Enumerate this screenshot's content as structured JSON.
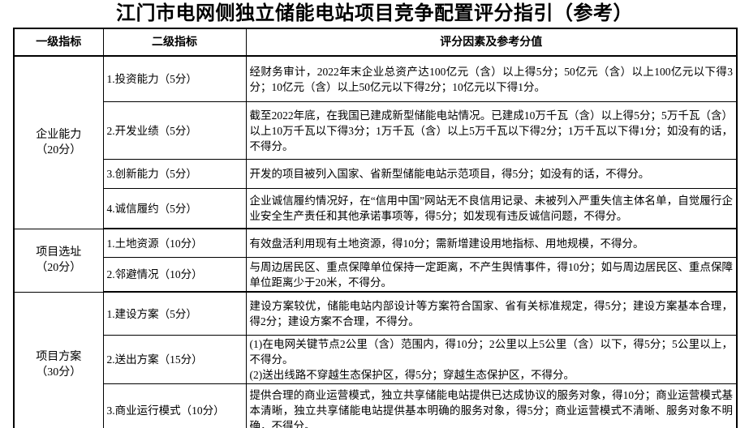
{
  "title": "江门市电网侧独立储能电站项目竞争配置评分指引（参考）",
  "table": {
    "headers": [
      "一级指标",
      "二级指标",
      "评分因素及参考分值"
    ],
    "sections": [
      {
        "category": {
          "name": "企业能力",
          "score": "（20分）"
        },
        "rows": [
          {
            "indicator": "1.投资能力（5分）",
            "criteria": "经财务审计，2022年末企业总资产达100亿元（含）以上得5分；50亿元（含）以上100亿元以下得3分；10亿元（含）以上50亿元以下得2分；10亿元以下得1分。"
          },
          {
            "indicator": "2.开发业绩（5分）",
            "criteria": "截至2022年底，在我国已建成新型储能电站情况。已建成10万千瓦（含）以上得5分；5万千瓦（含）以上10万千瓦以下得3分；1万千瓦（含）以上5万千瓦以下得2分；1万千瓦以下得1分；如没有的话，不得分。"
          },
          {
            "indicator": "3.创新能力（5分）",
            "criteria": "开发的项目被列入国家、省新型储能电站示范项目，得5分；如没有的话，不得分。"
          },
          {
            "indicator": "4.诚信履约（5分）",
            "criteria": "企业诚信履约情况好，在“信用中国”网站无不良信用记录、未被列入严重失信主体名单，自觉履行企业安全生产责任和其他承诺事项等，得5分；如发现有违反诚信问题，不得分。"
          }
        ]
      },
      {
        "category": {
          "name": "项目选址",
          "score": "（20分）"
        },
        "rows": [
          {
            "indicator": "1.土地资源（10分）",
            "criteria": "有效盘活利用现有土地资源，得10分；需新增建设用地指标、用地规模，不得分。"
          },
          {
            "indicator": "2.邻避情况（10分）",
            "criteria": "与周边居民区、重点保障单位保持一定距离，不产生舆情事件，得10分；如与周边居民区、重点保障单位距离少于20米，不得分。"
          }
        ]
      },
      {
        "category": {
          "name": "项目方案",
          "score": "（30分）"
        },
        "rows": [
          {
            "indicator": "1.建设方案（5分）",
            "criteria": "建设方案较优，储能电站内部设计等方案符合国家、省有关标准规定，得5分；建设方案基本合理，得2分；建设方案不合理，不得分。"
          },
          {
            "indicator": "2.送出方案（15分）",
            "criteria": "(1)在电网关键节点2公里（含）范围内，得10分；2公里以上5公里（含）以下，得5分；5公里以上，不得分。\n(2)送出线路不穿越生态保护区，得5分；穿越生态保护区，不得分。"
          },
          {
            "indicator": "3.商业运行模式（10分）",
            "criteria": "提供合理的商业运营模式，独立共享储能电站提供已达成协议的服务对象，得10分；商业运营模式基本清晰，独立共享储能电站提供基本明确的服务对象，得5分；商业运营模式不清晰、服务对象不明确，不得分。"
          }
        ]
      }
    ]
  }
}
